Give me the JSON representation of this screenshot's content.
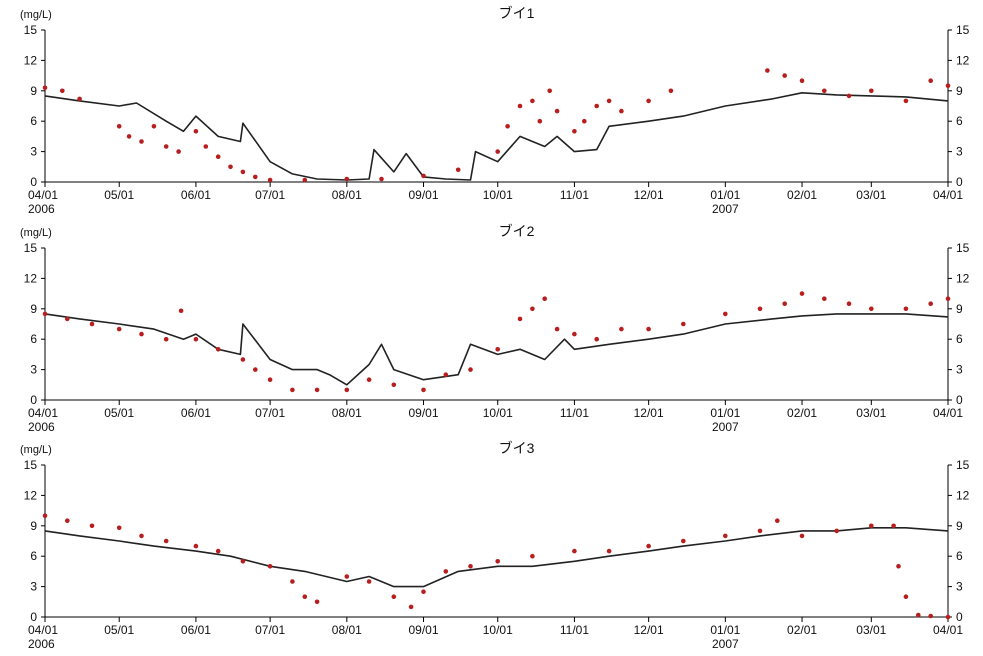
{
  "chart_data": [
    {
      "type": "line",
      "title": "ブイ1",
      "ylabel": "(mg/L)",
      "ylim": [
        0,
        15
      ],
      "yticks": [
        0,
        3,
        6,
        9,
        12,
        15
      ],
      "xlim": [
        "2006-04-01",
        "2007-04-01"
      ],
      "xticks": [
        "04/01",
        "05/01",
        "06/01",
        "07/01",
        "08/01",
        "09/01",
        "10/01",
        "11/01",
        "12/01",
        "01/01",
        "02/01",
        "03/01",
        "04/01"
      ],
      "year_labels": [
        {
          "at": "04/01",
          "text": "2006"
        },
        {
          "at": "01/01",
          "text": "2007"
        }
      ],
      "series": [
        {
          "kind": "line",
          "color": "#222222",
          "x": [
            "2006-04-01",
            "2006-04-15",
            "2006-05-01",
            "2006-05-08",
            "2006-05-20",
            "2006-05-27",
            "2006-06-01",
            "2006-06-10",
            "2006-06-19",
            "2006-06-20",
            "2006-07-01",
            "2006-07-10",
            "2006-07-20",
            "2006-08-01",
            "2006-08-10",
            "2006-08-12",
            "2006-08-20",
            "2006-08-25",
            "2006-09-01",
            "2006-09-10",
            "2006-09-20",
            "2006-09-22",
            "2006-10-01",
            "2006-10-10",
            "2006-10-20",
            "2006-10-25",
            "2006-11-01",
            "2006-11-10",
            "2006-11-15",
            "2006-12-01",
            "2006-12-15",
            "2007-01-01",
            "2007-01-20",
            "2007-02-01",
            "2007-02-15",
            "2007-03-01",
            "2007-03-15",
            "2007-04-01"
          ],
          "y": [
            8.5,
            8.0,
            7.5,
            7.8,
            6.0,
            5.0,
            6.5,
            4.5,
            4.0,
            5.8,
            2.0,
            0.8,
            0.3,
            0.2,
            0.3,
            3.2,
            1.0,
            2.8,
            0.5,
            0.3,
            0.2,
            3.0,
            2.0,
            4.5,
            3.5,
            4.5,
            3.0,
            3.2,
            5.5,
            6.0,
            6.5,
            7.5,
            8.2,
            8.8,
            8.6,
            8.5,
            8.4,
            8.0
          ]
        },
        {
          "kind": "scatter",
          "color": "#b81e1e",
          "x": [
            "2006-04-01",
            "2006-04-08",
            "2006-04-15",
            "2006-05-01",
            "2006-05-05",
            "2006-05-10",
            "2006-05-15",
            "2006-05-20",
            "2006-05-25",
            "2006-06-01",
            "2006-06-05",
            "2006-06-10",
            "2006-06-15",
            "2006-06-20",
            "2006-06-25",
            "2006-07-01",
            "2006-07-15",
            "2006-08-01",
            "2006-08-15",
            "2006-09-01",
            "2006-09-15",
            "2006-10-01",
            "2006-10-05",
            "2006-10-10",
            "2006-10-15",
            "2006-10-18",
            "2006-10-22",
            "2006-10-25",
            "2006-11-01",
            "2006-11-05",
            "2006-11-10",
            "2006-11-15",
            "2006-11-20",
            "2006-12-01",
            "2006-12-10",
            "2007-01-18",
            "2007-01-25",
            "2007-02-01",
            "2007-02-10",
            "2007-02-20",
            "2007-03-01",
            "2007-03-15",
            "2007-03-25",
            "2007-04-01"
          ],
          "y": [
            9.3,
            9.0,
            8.2,
            5.5,
            4.5,
            4.0,
            5.5,
            3.5,
            3.0,
            5.0,
            3.5,
            2.5,
            1.5,
            1.0,
            0.5,
            0.2,
            0.2,
            0.3,
            0.3,
            0.6,
            1.2,
            3.0,
            5.5,
            7.5,
            8.0,
            6.0,
            9.0,
            7.0,
            5.0,
            6.0,
            7.5,
            8.0,
            7.0,
            8.0,
            9.0,
            11.0,
            10.5,
            10.0,
            9.0,
            8.5,
            9.0,
            8.0,
            10.0,
            9.5
          ]
        }
      ]
    },
    {
      "type": "line",
      "title": "ブイ2",
      "ylabel": "(mg/L)",
      "ylim": [
        0,
        15
      ],
      "yticks": [
        0,
        3,
        6,
        9,
        12,
        15
      ],
      "xlim": [
        "2006-04-01",
        "2007-04-01"
      ],
      "xticks": [
        "04/01",
        "05/01",
        "06/01",
        "07/01",
        "08/01",
        "09/01",
        "10/01",
        "11/01",
        "12/01",
        "01/01",
        "02/01",
        "03/01",
        "04/01"
      ],
      "year_labels": [
        {
          "at": "04/01",
          "text": "2006"
        },
        {
          "at": "01/01",
          "text": "2007"
        }
      ],
      "series": [
        {
          "kind": "line",
          "color": "#222222",
          "x": [
            "2006-04-01",
            "2006-04-15",
            "2006-05-01",
            "2006-05-15",
            "2006-05-27",
            "2006-06-01",
            "2006-06-10",
            "2006-06-19",
            "2006-06-20",
            "2006-07-01",
            "2006-07-10",
            "2006-07-20",
            "2006-07-25",
            "2006-08-01",
            "2006-08-10",
            "2006-08-15",
            "2006-08-20",
            "2006-09-01",
            "2006-09-15",
            "2006-09-20",
            "2006-10-01",
            "2006-10-10",
            "2006-10-20",
            "2006-10-28",
            "2006-11-01",
            "2006-11-15",
            "2006-12-01",
            "2006-12-15",
            "2007-01-01",
            "2007-01-20",
            "2007-02-01",
            "2007-02-15",
            "2007-03-01",
            "2007-03-15",
            "2007-04-01"
          ],
          "y": [
            8.5,
            8.0,
            7.5,
            7.0,
            6.0,
            6.5,
            5.0,
            4.5,
            7.5,
            4.0,
            3.0,
            3.0,
            2.5,
            1.5,
            3.5,
            5.5,
            3.0,
            2.0,
            2.5,
            5.5,
            4.5,
            5.0,
            4.0,
            6.0,
            5.0,
            5.5,
            6.0,
            6.5,
            7.5,
            8.0,
            8.3,
            8.5,
            8.5,
            8.5,
            8.2
          ]
        },
        {
          "kind": "scatter",
          "color": "#b81e1e",
          "x": [
            "2006-04-01",
            "2006-04-10",
            "2006-04-20",
            "2006-05-01",
            "2006-05-10",
            "2006-05-20",
            "2006-05-26",
            "2006-06-01",
            "2006-06-10",
            "2006-06-20",
            "2006-06-25",
            "2006-07-01",
            "2006-07-10",
            "2006-07-20",
            "2006-08-01",
            "2006-08-10",
            "2006-08-20",
            "2006-09-01",
            "2006-09-10",
            "2006-09-20",
            "2006-10-01",
            "2006-10-10",
            "2006-10-15",
            "2006-10-20",
            "2006-10-25",
            "2006-11-01",
            "2006-11-10",
            "2006-11-20",
            "2006-12-01",
            "2006-12-15",
            "2007-01-01",
            "2007-01-15",
            "2007-01-25",
            "2007-02-01",
            "2007-02-10",
            "2007-02-20",
            "2007-03-01",
            "2007-03-15",
            "2007-03-25",
            "2007-04-01"
          ],
          "y": [
            8.5,
            8.0,
            7.5,
            7.0,
            6.5,
            6.0,
            8.8,
            6.0,
            5.0,
            4.0,
            3.0,
            2.0,
            1.0,
            1.0,
            1.0,
            2.0,
            1.5,
            1.0,
            2.5,
            3.0,
            5.0,
            8.0,
            9.0,
            10.0,
            7.0,
            6.5,
            6.0,
            7.0,
            7.0,
            7.5,
            8.5,
            9.0,
            9.5,
            10.5,
            10.0,
            9.5,
            9.0,
            9.0,
            9.5,
            10.0
          ]
        }
      ]
    },
    {
      "type": "line",
      "title": "ブイ3",
      "ylabel": "(mg/L)",
      "ylim": [
        0,
        15
      ],
      "yticks": [
        0,
        3,
        6,
        9,
        12,
        15
      ],
      "xlim": [
        "2006-04-01",
        "2007-04-01"
      ],
      "xticks": [
        "04/01",
        "05/01",
        "06/01",
        "07/01",
        "08/01",
        "09/01",
        "10/01",
        "11/01",
        "12/01",
        "01/01",
        "02/01",
        "03/01",
        "04/01"
      ],
      "year_labels": [
        {
          "at": "04/01",
          "text": "2006"
        },
        {
          "at": "01/01",
          "text": "2007"
        }
      ],
      "series": [
        {
          "kind": "line",
          "color": "#222222",
          "x": [
            "2006-04-01",
            "2006-04-15",
            "2006-05-01",
            "2006-05-15",
            "2006-06-01",
            "2006-06-15",
            "2006-07-01",
            "2006-07-15",
            "2006-08-01",
            "2006-08-10",
            "2006-08-20",
            "2006-09-01",
            "2006-09-15",
            "2006-10-01",
            "2006-10-15",
            "2006-11-01",
            "2006-11-15",
            "2006-12-01",
            "2006-12-15",
            "2007-01-01",
            "2007-01-15",
            "2007-02-01",
            "2007-02-15",
            "2007-03-01",
            "2007-03-15",
            "2007-04-01"
          ],
          "y": [
            8.5,
            8.0,
            7.5,
            7.0,
            6.5,
            6.0,
            5.0,
            4.5,
            3.5,
            4.0,
            3.0,
            3.0,
            4.5,
            5.0,
            5.0,
            5.5,
            6.0,
            6.5,
            7.0,
            7.5,
            8.0,
            8.5,
            8.5,
            8.8,
            8.8,
            8.5
          ]
        },
        {
          "kind": "scatter",
          "color": "#b81e1e",
          "x": [
            "2006-04-01",
            "2006-04-10",
            "2006-04-20",
            "2006-05-01",
            "2006-05-10",
            "2006-05-20",
            "2006-06-01",
            "2006-06-10",
            "2006-06-20",
            "2006-07-01",
            "2006-07-10",
            "2006-07-15",
            "2006-07-20",
            "2006-08-01",
            "2006-08-10",
            "2006-08-20",
            "2006-08-27",
            "2006-09-01",
            "2006-09-10",
            "2006-09-20",
            "2006-10-01",
            "2006-10-15",
            "2006-11-01",
            "2006-11-15",
            "2006-12-01",
            "2006-12-15",
            "2007-01-01",
            "2007-01-15",
            "2007-01-22",
            "2007-02-01",
            "2007-02-15",
            "2007-03-01",
            "2007-03-10",
            "2007-03-12",
            "2007-03-15",
            "2007-03-20",
            "2007-03-25",
            "2007-04-01"
          ],
          "y": [
            10.0,
            9.5,
            9.0,
            8.8,
            8.0,
            7.5,
            7.0,
            6.5,
            5.5,
            5.0,
            3.5,
            2.0,
            1.5,
            4.0,
            3.5,
            2.0,
            1.0,
            2.5,
            4.5,
            5.0,
            5.5,
            6.0,
            6.5,
            6.5,
            7.0,
            7.5,
            8.0,
            8.5,
            9.5,
            8.0,
            8.5,
            9.0,
            9.0,
            5.0,
            2.0,
            0.2,
            0.1,
            0.0
          ]
        }
      ]
    }
  ]
}
